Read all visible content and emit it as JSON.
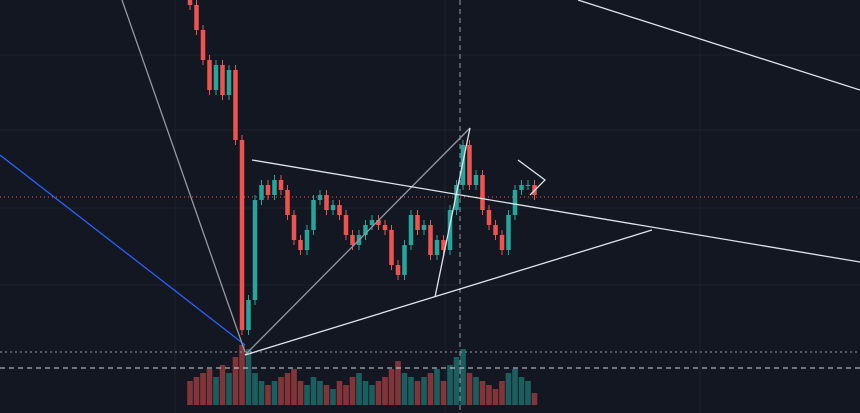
{
  "chart_data": {
    "type": "candlestick",
    "open": [
      413,
      408,
      383,
      353,
      323,
      348,
      318,
      343,
      273,
      83,
      113,
      213,
      228,
      218,
      233,
      223,
      198,
      173,
      163,
      183,
      213,
      218,
      203,
      208,
      198,
      178,
      168,
      178,
      188,
      193,
      188,
      183,
      148,
      138,
      168,
      198,
      183,
      188,
      158,
      173,
      163,
      203,
      228,
      268,
      228,
      238,
      203,
      188,
      178,
      163,
      198,
      223,
      228,
      228
    ],
    "high": [
      418,
      413,
      388,
      358,
      353,
      353,
      348,
      348,
      278,
      118,
      218,
      233,
      233,
      238,
      238,
      228,
      203,
      178,
      188,
      218,
      223,
      223,
      213,
      213,
      203,
      183,
      183,
      193,
      198,
      198,
      193,
      188,
      153,
      173,
      203,
      203,
      193,
      193,
      178,
      178,
      208,
      233,
      273,
      273,
      243,
      243,
      208,
      193,
      183,
      203,
      228,
      233,
      233,
      233
    ],
    "low": [
      403,
      378,
      348,
      318,
      318,
      313,
      313,
      268,
      78,
      78,
      108,
      208,
      213,
      213,
      218,
      193,
      168,
      158,
      158,
      178,
      208,
      198,
      198,
      193,
      173,
      163,
      163,
      173,
      183,
      183,
      178,
      143,
      133,
      133,
      163,
      178,
      178,
      153,
      153,
      158,
      158,
      198,
      223,
      223,
      223,
      198,
      183,
      173,
      158,
      158,
      193,
      218,
      223,
      213
    ],
    "close": [
      408,
      383,
      353,
      323,
      348,
      318,
      343,
      273,
      83,
      113,
      213,
      228,
      218,
      233,
      223,
      198,
      173,
      163,
      183,
      213,
      218,
      203,
      208,
      198,
      178,
      168,
      178,
      188,
      193,
      188,
      183,
      148,
      138,
      168,
      198,
      183,
      188,
      158,
      173,
      163,
      203,
      228,
      268,
      228,
      238,
      203,
      188,
      178,
      163,
      198,
      223,
      228,
      228,
      218
    ],
    "volume": [
      30,
      35,
      40,
      45,
      35,
      50,
      40,
      60,
      75,
      70,
      40,
      30,
      25,
      30,
      35,
      40,
      45,
      30,
      25,
      35,
      30,
      25,
      20,
      30,
      25,
      35,
      40,
      30,
      25,
      30,
      35,
      45,
      55,
      40,
      35,
      30,
      35,
      40,
      45,
      30,
      50,
      60,
      70,
      40,
      35,
      30,
      25,
      20,
      30,
      40,
      45,
      35,
      30,
      15
    ],
    "ylim": [
      0,
      413
    ],
    "volume_lim": [
      0,
      100
    ],
    "up_color": "#26a69a",
    "down_color": "#ef5350"
  }
}
